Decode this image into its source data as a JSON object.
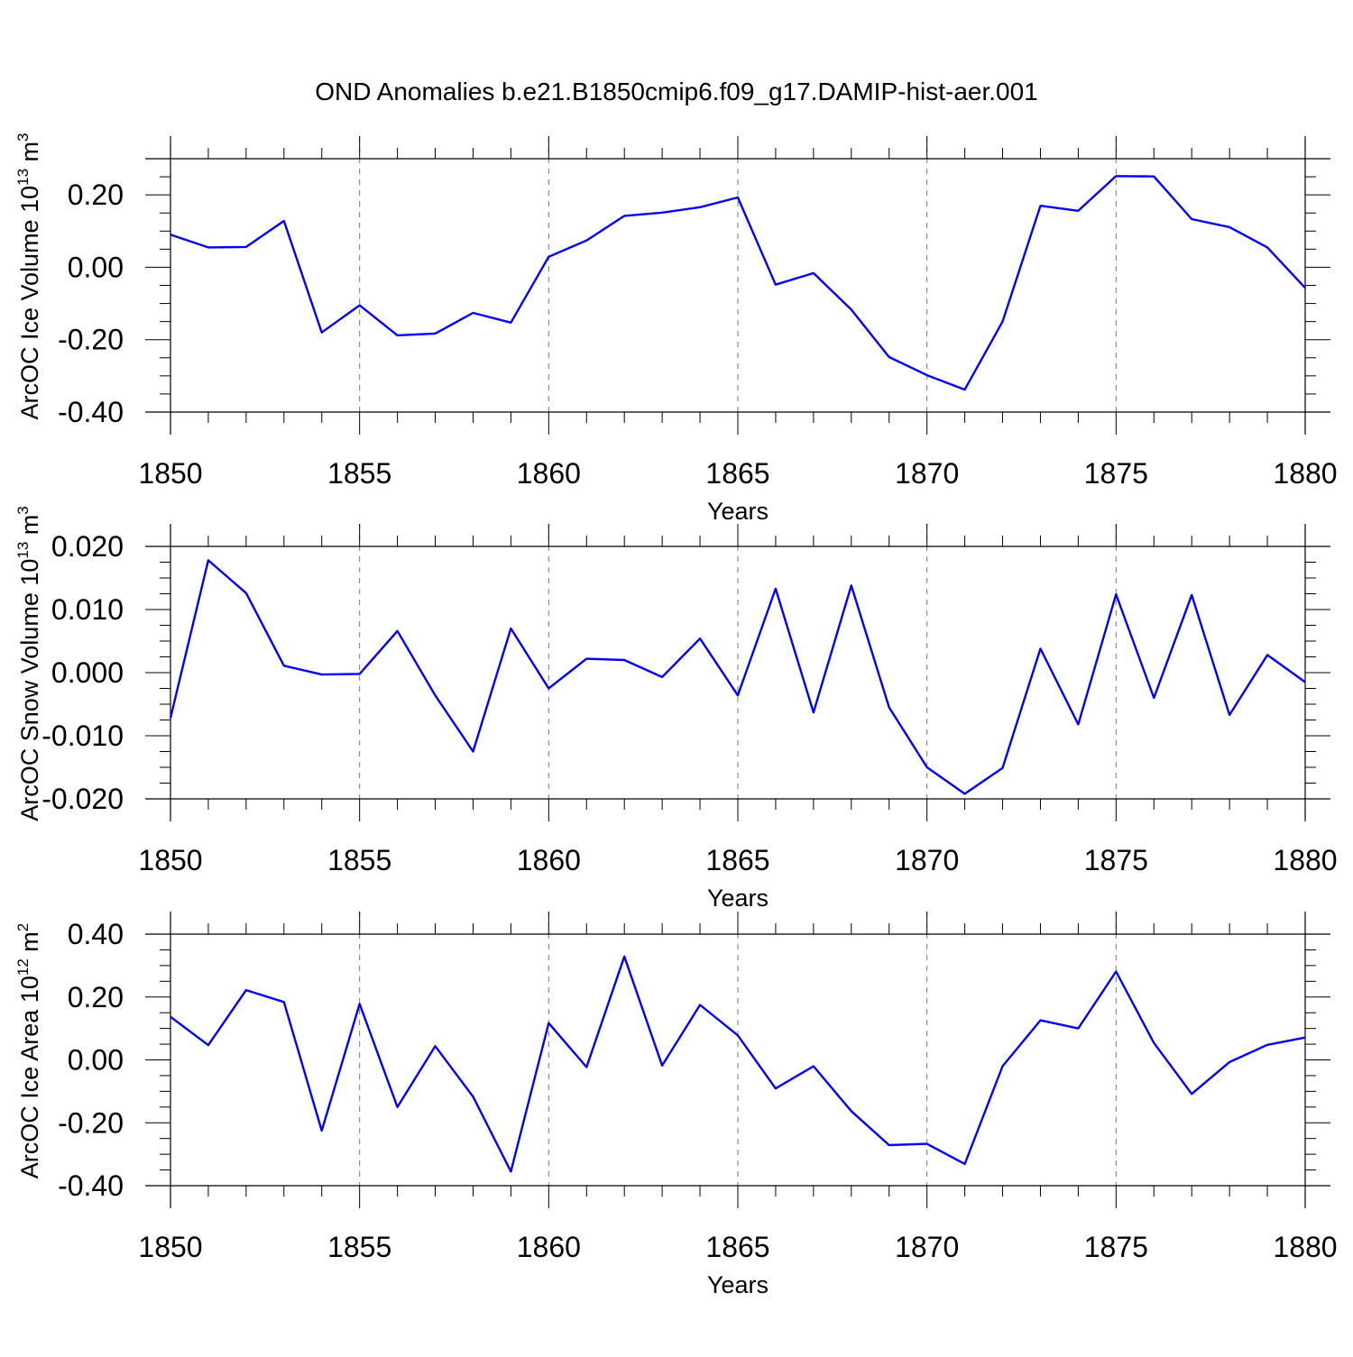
{
  "title": "OND Anomalies b.e21.B1850cmip6.f09_g17.DAMIP-hist-aer.001",
  "colors": {
    "series": "#0000ff",
    "axes": "#000000",
    "grid": "#777777"
  },
  "chart_data": [
    {
      "type": "line",
      "xlabel": "Years",
      "ylabel": "ArcOC Ice Volume 10",
      "ylabel_exp": "13",
      "ylabel_unit": " m",
      "ylabel_unit_exp": "3",
      "xlim": [
        1850,
        1880
      ],
      "ylim": [
        -0.4,
        0.3
      ],
      "grid": "vertical-dashed",
      "xticks": [
        1850,
        1855,
        1860,
        1865,
        1870,
        1875,
        1880
      ],
      "xtick_labels": [
        "1850",
        "1855",
        "1860",
        "1865",
        "1870",
        "1875",
        "1880"
      ],
      "yticks": [
        -0.4,
        -0.2,
        0.0,
        0.2
      ],
      "ytick_labels": [
        "-0.40",
        "-0.20",
        "0.00",
        "0.20"
      ],
      "x": [
        1850,
        1851,
        1852,
        1853,
        1854,
        1855,
        1856,
        1857,
        1858,
        1859,
        1860,
        1861,
        1862,
        1863,
        1864,
        1865,
        1866,
        1867,
        1868,
        1869,
        1870,
        1871,
        1872,
        1873,
        1874,
        1875,
        1876,
        1877,
        1878,
        1879,
        1880
      ],
      "y": [
        0.09,
        0.055,
        0.056,
        0.128,
        -0.18,
        -0.105,
        -0.188,
        -0.183,
        -0.126,
        -0.153,
        0.029,
        0.074,
        0.142,
        0.151,
        0.166,
        0.193,
        -0.048,
        -0.016,
        -0.117,
        -0.248,
        -0.298,
        -0.338,
        -0.15,
        0.17,
        0.156,
        0.252,
        0.251,
        0.133,
        0.111,
        0.055,
        -0.057
      ]
    },
    {
      "type": "line",
      "xlabel": "Years",
      "ylabel": "ArcOC Snow Volume 10",
      "ylabel_exp": "13",
      "ylabel_unit": " m",
      "ylabel_unit_exp": "3",
      "xlim": [
        1850,
        1880
      ],
      "ylim": [
        -0.02,
        0.02
      ],
      "grid": "vertical-dashed",
      "xticks": [
        1850,
        1855,
        1860,
        1865,
        1870,
        1875,
        1880
      ],
      "xtick_labels": [
        "1850",
        "1855",
        "1860",
        "1865",
        "1870",
        "1875",
        "1880"
      ],
      "yticks": [
        -0.02,
        -0.01,
        0.0,
        0.01,
        0.02
      ],
      "ytick_labels": [
        "-0.020",
        "-0.010",
        "0.000",
        "0.010",
        "0.020"
      ],
      "x": [
        1850,
        1851,
        1852,
        1853,
        1854,
        1855,
        1856,
        1857,
        1858,
        1859,
        1860,
        1861,
        1862,
        1863,
        1864,
        1865,
        1866,
        1867,
        1868,
        1869,
        1870,
        1871,
        1872,
        1873,
        1874,
        1875,
        1876,
        1877,
        1878,
        1879,
        1880
      ],
      "y": [
        -0.0072,
        0.0178,
        0.0126,
        0.0011,
        -0.0003,
        -0.0002,
        0.0066,
        -0.0036,
        -0.0125,
        0.007,
        -0.0025,
        0.0022,
        0.002,
        -0.0007,
        0.0054,
        -0.0036,
        0.0133,
        -0.0063,
        0.0138,
        -0.0055,
        -0.015,
        -0.0192,
        -0.0151,
        0.0038,
        -0.0082,
        0.0124,
        -0.004,
        0.0123,
        -0.0067,
        0.0028,
        -0.0015
      ]
    },
    {
      "type": "line",
      "xlabel": "Years",
      "ylabel": "ArcOC Ice Area 10",
      "ylabel_exp": "12",
      "ylabel_unit": " m",
      "ylabel_unit_exp": "2",
      "xlim": [
        1850,
        1880
      ],
      "ylim": [
        -0.4,
        0.4
      ],
      "grid": "vertical-dashed",
      "xticks": [
        1850,
        1855,
        1860,
        1865,
        1870,
        1875,
        1880
      ],
      "xtick_labels": [
        "1850",
        "1855",
        "1860",
        "1865",
        "1870",
        "1875",
        "1880"
      ],
      "yticks": [
        -0.4,
        -0.2,
        0.0,
        0.2,
        0.4
      ],
      "ytick_labels": [
        "-0.40",
        "-0.20",
        "0.00",
        "0.20",
        "0.40"
      ],
      "x": [
        1850,
        1851,
        1852,
        1853,
        1854,
        1855,
        1856,
        1857,
        1858,
        1859,
        1860,
        1861,
        1862,
        1863,
        1864,
        1865,
        1866,
        1867,
        1868,
        1869,
        1870,
        1871,
        1872,
        1873,
        1874,
        1875,
        1876,
        1877,
        1878,
        1879,
        1880
      ],
      "y": [
        0.137,
        0.047,
        0.222,
        0.184,
        -0.225,
        0.178,
        -0.15,
        0.044,
        -0.117,
        -0.355,
        0.117,
        -0.023,
        0.329,
        -0.018,
        0.175,
        0.078,
        -0.091,
        -0.02,
        -0.163,
        -0.271,
        -0.267,
        -0.331,
        -0.02,
        0.126,
        0.1,
        0.281,
        0.054,
        -0.108,
        -0.007,
        0.048,
        0.071
      ]
    }
  ]
}
